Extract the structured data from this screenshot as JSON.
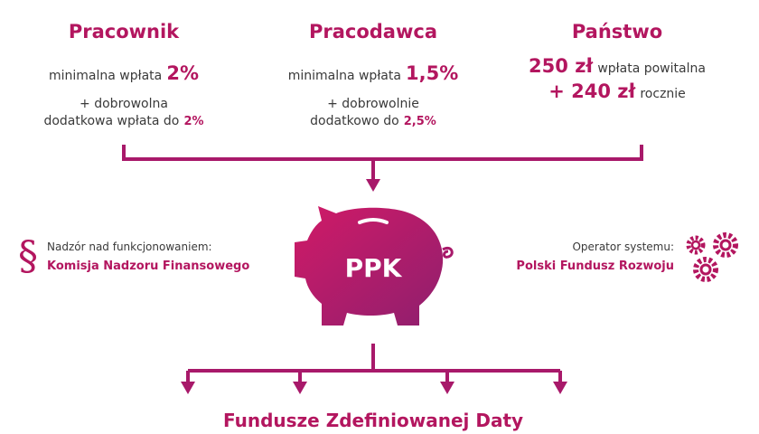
{
  "columns": [
    {
      "title": "Pracownik",
      "line1": {
        "text": "minimalna wpłata",
        "amount": "2%"
      },
      "line2": "+ dobrowolna",
      "line3": {
        "text": "dodatkowa wpłata do",
        "amount": "2%"
      }
    },
    {
      "title": "Pracodawca",
      "line1": {
        "text": "minimalna wpłata",
        "amount": "1,5%"
      },
      "line2": "+ dobrowolnie",
      "line3": {
        "text": "dodatkowo do",
        "amount": "2,5%"
      }
    },
    {
      "title": "Państwo",
      "line1": {
        "amount": "250 zł",
        "text": "wpłata powitalna"
      },
      "line2": {
        "amount": "+ 240 zł",
        "text": "rocznie"
      }
    }
  ],
  "center": {
    "label": "PPK"
  },
  "left": {
    "icon": "§",
    "caption": "Nadzór nad funkcjonowaniem:",
    "name": "Komisja Nadzoru Finansowego"
  },
  "right": {
    "caption": "Operator systemu:",
    "name": "Polski Fundusz Rozwoju"
  },
  "footer": {
    "title": "Fundusze Zdefiniowanej Daty"
  }
}
